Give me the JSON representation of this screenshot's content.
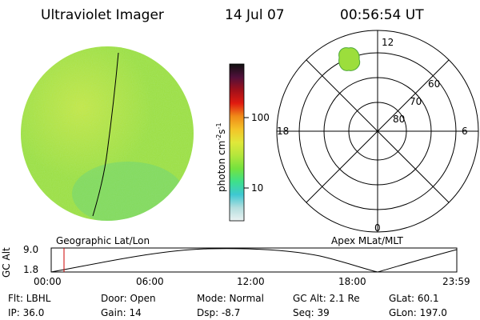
{
  "header": {
    "title": "Ultraviolet Imager",
    "date": "14 Jul 07",
    "time": "00:56:54 UT"
  },
  "colorbar": {
    "label": "photon cm",
    "label_sup1": "-2",
    "label_mid": "s",
    "label_sup2": "-1",
    "ticks": [
      "100",
      "10"
    ]
  },
  "polar": {
    "mlt_labels": [
      "12",
      "18",
      "6",
      "0"
    ],
    "lat_labels": [
      "60",
      "70",
      "80"
    ]
  },
  "map_labels": {
    "left": "Geographic Lat/Lon",
    "right": "Apex MLat/MLT"
  },
  "timeline": {
    "ylabel": "GC Alt",
    "y_ticks": [
      "9.0",
      "1.8"
    ],
    "x_ticks": [
      "00:00",
      "06:00",
      "12:00",
      "18:00",
      "23:59"
    ],
    "marker_color": "#cc0000"
  },
  "info": {
    "filter": "Flt: LBHL",
    "door": "Door: Open",
    "mode": "Mode: Normal",
    "gc_alt": "GC Alt: 2.1 Re",
    "glat": "GLat:  60.1",
    "ip": "IP: 36.0",
    "gain": "Gain: 14",
    "dsp": "Dsp:   -8.7",
    "seq": "Seq: 39",
    "glon": "GLon: 197.0"
  },
  "colors": {
    "disk_main": "#9cde3c",
    "disk_light": "#c6e640",
    "disk_teal": "#5ad28e",
    "colorbar": [
      "#eaf2f2",
      "#b4dede",
      "#3ec8d2",
      "#3ee08a",
      "#74e23e",
      "#b4e63c",
      "#e0e83a",
      "#f4c428",
      "#f08a18",
      "#e01a10",
      "#a0101a",
      "#50103a",
      "#101010"
    ]
  }
}
